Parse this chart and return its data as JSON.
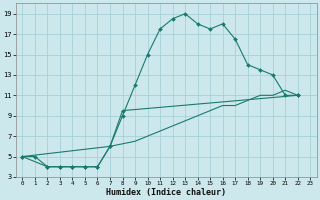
{
  "xlabel": "Humidex (Indice chaleur)",
  "bg_color": "#cce8ec",
  "grid_color": "#a8d0d8",
  "line_color": "#1a7a6e",
  "xlim": [
    -0.5,
    23.5
  ],
  "ylim": [
    3,
    20
  ],
  "xticks": [
    0,
    1,
    2,
    3,
    4,
    5,
    6,
    7,
    8,
    9,
    10,
    11,
    12,
    13,
    14,
    15,
    16,
    17,
    18,
    19,
    20,
    21,
    22,
    23
  ],
  "yticks": [
    3,
    5,
    7,
    9,
    11,
    13,
    15,
    17,
    19
  ],
  "line1_x": [
    0,
    1,
    2,
    3,
    4,
    5,
    6,
    7,
    8,
    9,
    10,
    11,
    12,
    13,
    14,
    15,
    16,
    17,
    18,
    19,
    20,
    21,
    22
  ],
  "line1_y": [
    5,
    5,
    4,
    4,
    4,
    4,
    4,
    6,
    9,
    12,
    15,
    17.5,
    18.5,
    19,
    18,
    17.5,
    18,
    16.5,
    14,
    13.5,
    13,
    11,
    11
  ],
  "line2_x": [
    0,
    2,
    3,
    4,
    5,
    6,
    7,
    8,
    22
  ],
  "line2_y": [
    5,
    4,
    4,
    4,
    4,
    4,
    6,
    9.5,
    11
  ],
  "line3_x": [
    0,
    7,
    9,
    10,
    11,
    12,
    13,
    14,
    15,
    16,
    17,
    18,
    19,
    20,
    21,
    22
  ],
  "line3_y": [
    5,
    6,
    6.5,
    7,
    7.5,
    8,
    8.5,
    9,
    9.5,
    10,
    10,
    10.5,
    11,
    11,
    11.5,
    11
  ]
}
